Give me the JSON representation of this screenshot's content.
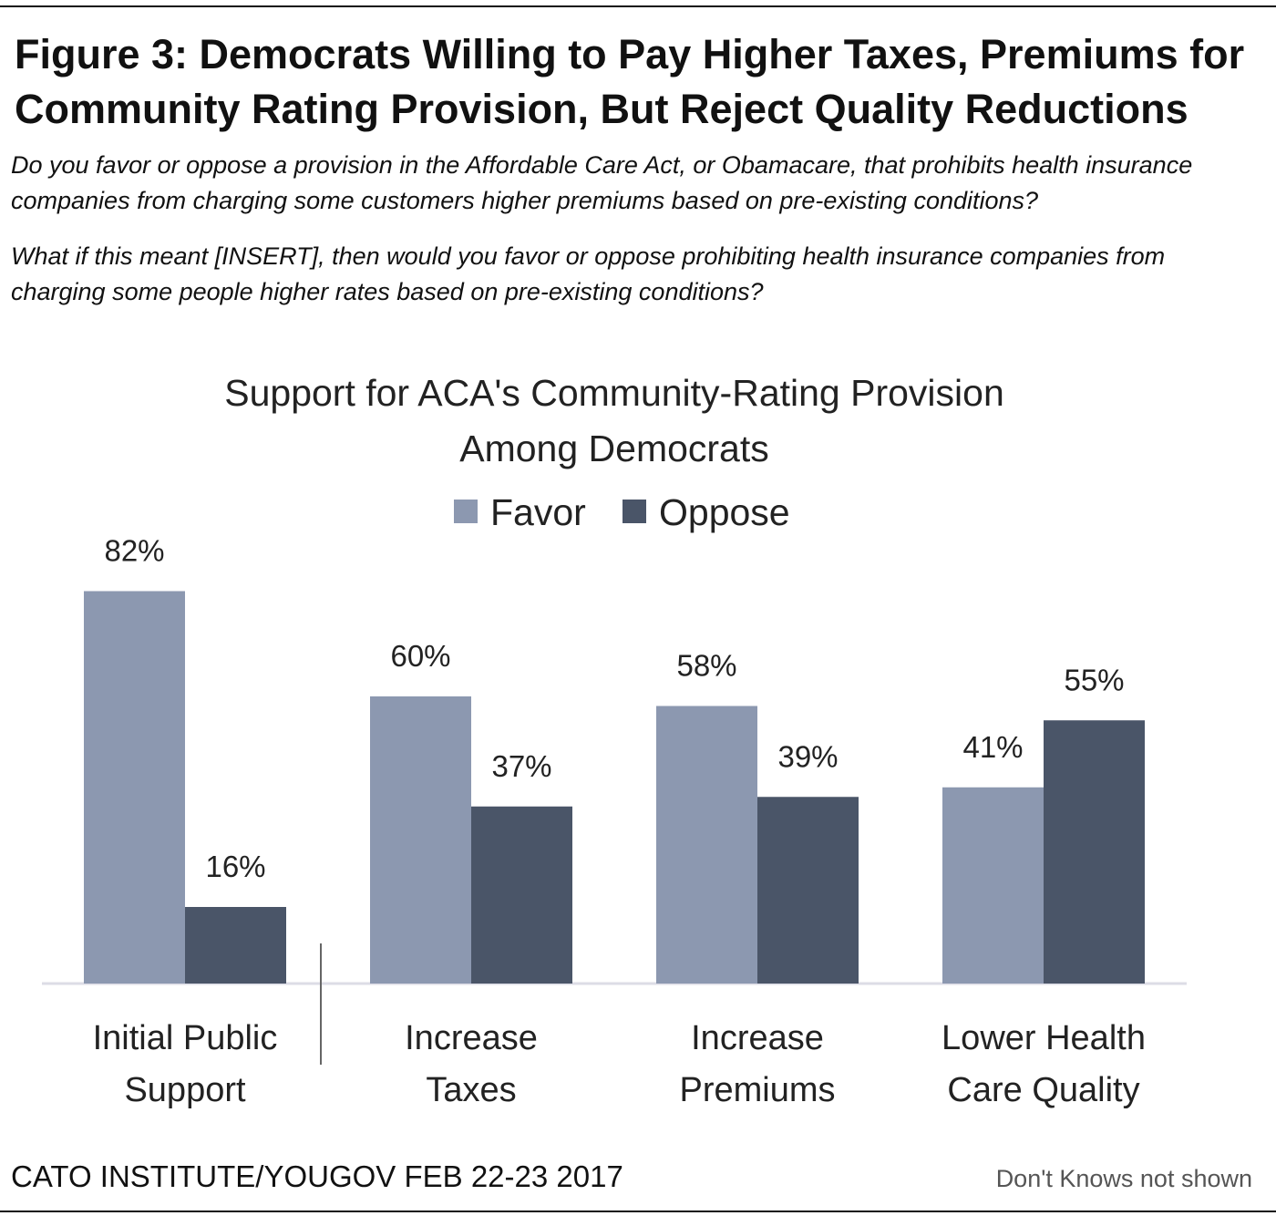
{
  "figure": {
    "title": "Figure 3: Democrats Willing to Pay Higher Taxes, Premiums for Community Rating Provision, But Reject Quality Reductions",
    "question_1": "Do you favor or oppose a provision in the Affordable Care Act, or Obamacare, that prohibits health insurance companies from charging some customers higher premiums based on pre-existing conditions?",
    "question_2": "What if this meant [INSERT], then would you favor or oppose prohibiting health insurance companies from charging some people higher rates based on pre-existing conditions?"
  },
  "footer": {
    "source": "CATO INSTITUTE/YOUGOV FEB 22-23 2017",
    "note": "Don't Knows not shown"
  },
  "colors": {
    "favor": "#8c98b0",
    "oppose": "#4a5568",
    "axis": "#dcdce6",
    "separator": "#666666",
    "text": "#222222"
  },
  "chart_data": {
    "type": "bar",
    "title_lines": [
      "Support for ACA's Community-Rating Provision",
      "Among Democrats"
    ],
    "categories": [
      [
        "Initial Public",
        "Support"
      ],
      [
        "Increase",
        "Taxes"
      ],
      [
        "Increase",
        "Premiums"
      ],
      [
        "Lower Health",
        "Care Quality"
      ]
    ],
    "series": [
      {
        "name": "Favor",
        "values": [
          82,
          60,
          58,
          41
        ],
        "labels": [
          "82%",
          "60%",
          "58%",
          "41%"
        ]
      },
      {
        "name": "Oppose",
        "values": [
          16,
          37,
          39,
          55
        ],
        "labels": [
          "16%",
          "37%",
          "39%",
          "55%"
        ]
      }
    ],
    "ylim": [
      0,
      100
    ],
    "grid": false,
    "legend_position": "top"
  }
}
